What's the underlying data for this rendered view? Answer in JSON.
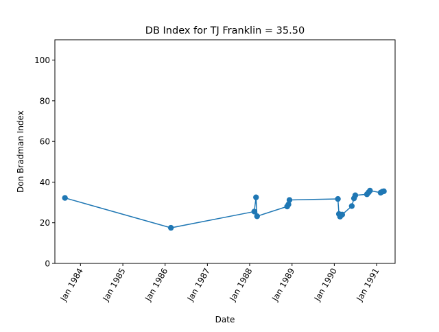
{
  "chart_data": {
    "type": "line",
    "title": "DB Index for TJ Franklin = 35.50",
    "xlabel": "Date",
    "ylabel": "Don Bradman Index",
    "ylim": [
      0,
      110
    ],
    "xlim": [
      "1983-05-25",
      "1991-06-10"
    ],
    "yticks": [
      0,
      20,
      40,
      60,
      80,
      100
    ],
    "xticks": [
      {
        "date": "1984-01-01",
        "label": "Jan 1984"
      },
      {
        "date": "1985-01-01",
        "label": "Jan 1985"
      },
      {
        "date": "1986-01-01",
        "label": "Jan 1986"
      },
      {
        "date": "1987-01-01",
        "label": "Jan 1987"
      },
      {
        "date": "1988-01-01",
        "label": "Jan 1988"
      },
      {
        "date": "1989-01-01",
        "label": "Jan 1989"
      },
      {
        "date": "1990-01-01",
        "label": "Jan 1990"
      },
      {
        "date": "1991-01-01",
        "label": "Jan 1991"
      }
    ],
    "grid": false,
    "color": "#1f77b4",
    "series": [
      {
        "points": [
          {
            "x": "1983-08-20",
            "y": 32.2
          },
          {
            "x": "1986-02-20",
            "y": 17.5
          },
          {
            "x": "1988-02-10",
            "y": 25.5
          },
          {
            "x": "1988-02-25",
            "y": 32.5
          },
          {
            "x": "1988-03-05",
            "y": 23.2
          },
          {
            "x": "1988-11-20",
            "y": 28.0
          },
          {
            "x": "1988-12-01",
            "y": 29.0
          },
          {
            "x": "1988-12-10",
            "y": 31.2
          },
          {
            "x": "1990-02-01",
            "y": 31.7
          },
          {
            "x": "1990-02-10",
            "y": 24.3
          },
          {
            "x": "1990-02-20",
            "y": 23.0
          },
          {
            "x": "1990-03-10",
            "y": 24.0
          },
          {
            "x": "1990-06-01",
            "y": 28.2
          },
          {
            "x": "1990-06-20",
            "y": 32.0
          },
          {
            "x": "1990-07-01",
            "y": 33.5
          },
          {
            "x": "1990-10-10",
            "y": 34.0
          },
          {
            "x": "1990-10-25",
            "y": 35.0
          },
          {
            "x": "1990-11-05",
            "y": 35.8
          },
          {
            "x": "1991-02-05",
            "y": 34.8
          },
          {
            "x": "1991-02-20",
            "y": 35.3
          },
          {
            "x": "1991-03-05",
            "y": 35.5
          }
        ]
      }
    ]
  }
}
